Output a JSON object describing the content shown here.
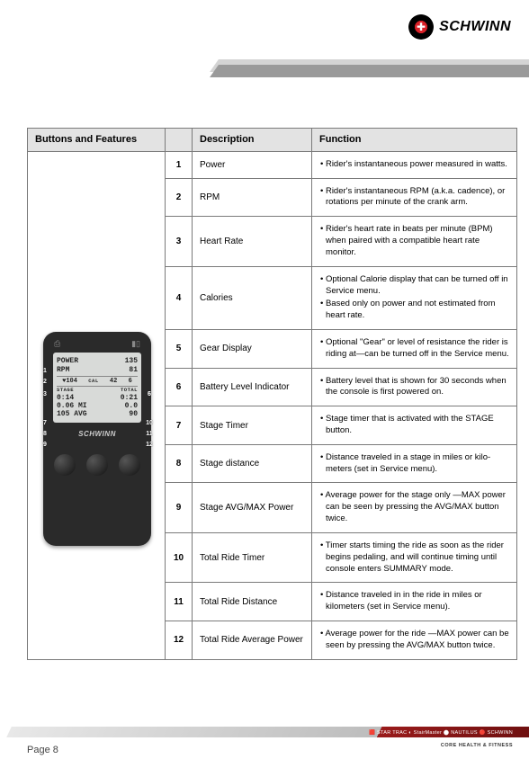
{
  "brand": "SCHWINN",
  "page_label": "Page 8",
  "footer_brands": "🟥 STAR TRAC  ◐ StairMaster  ⬤ NAUTILUS  🔴 SCHWINN",
  "footer_tag": "CORE HEALTH & FITNESS",
  "headers": {
    "c1": "Buttons and Features",
    "c2": "",
    "c3": "Description",
    "c4": "Function"
  },
  "device": {
    "brand": "SCHWINN",
    "rows": {
      "power_label": "POWER",
      "power_val": "135",
      "rpm_label": "RPM",
      "rpm_val": "81",
      "hr_label": "♥",
      "hr_val": "104",
      "cal_label": "CAL",
      "cal_val": "42",
      "gear_label": "",
      "gear_val": "6",
      "stage_lbl": "STAGE",
      "total_lbl": "TOTAL",
      "stage_time": "0:14",
      "total_time": "0:21",
      "stage_dist": "0.06 MI",
      "total_dist": "0.0",
      "stage_pwr": "105 AVG",
      "total_pwr": "90"
    },
    "markers_left": [
      "1",
      "2",
      "3",
      "7",
      "8",
      "9"
    ],
    "markers_right": [
      "5",
      "6",
      "10",
      "11",
      "12"
    ],
    "marker_4": "4"
  },
  "rows": [
    {
      "n": "1",
      "desc": "Power",
      "func": [
        "•  Rider's instantaneous power measured in watts."
      ]
    },
    {
      "n": "2",
      "desc": "RPM",
      "func": [
        "•  Rider's instantaneous RPM (a.k.a. cadence), or rotations per minute of the crank arm."
      ]
    },
    {
      "n": "3",
      "desc": "Heart Rate",
      "func": [
        "•  Rider's heart rate in beats per minute (BPM) when paired with a compatible heart rate monitor."
      ]
    },
    {
      "n": "4",
      "desc": "Calories",
      "func": [
        "•  Optional Calorie display that can be turned off in Service menu.",
        "•  Based only on power and not estimated from heart rate."
      ]
    },
    {
      "n": "5",
      "desc": "Gear Display",
      "func": [
        "•  Optional \"Gear\" or level of resistance the rider is riding at—can be turned off in the Service menu."
      ]
    },
    {
      "n": "6",
      "desc": "Battery Level Indicator",
      "func": [
        "•  Battery level that is shown for 30 seconds when the console is first powered on."
      ]
    },
    {
      "n": "7",
      "desc": "Stage Timer",
      "func": [
        "•  Stage timer that is activated with the STAGE button."
      ]
    },
    {
      "n": "8",
      "desc": "Stage distance",
      "func": [
        "•  Distance traveled in a stage in miles or kilo­meters (set in Service menu)."
      ]
    },
    {
      "n": "9",
      "desc": "Stage AVG/MAX Power",
      "func": [
        "•  Average power for the stage only —MAX power can be seen by pressing the AVG/MAX button twice."
      ]
    },
    {
      "n": "10",
      "desc": "Total Ride Timer",
      "func": [
        "•  Timer starts timing the ride as soon as the rider begins pedaling, and will continue timing until console enters SUMMARY mode."
      ]
    },
    {
      "n": "11",
      "desc": "Total Ride Distance",
      "func": [
        "•  Distance traveled in in the ride in miles or kilometers (set in Service menu)."
      ]
    },
    {
      "n": "12",
      "desc": "Total Ride Average Power",
      "func": [
        "•  Average power for the ride —MAX power can be seen by pressing the AVG/MAX button twice."
      ]
    }
  ],
  "colors": {
    "accent_light": "#d4d4d4",
    "accent_dark": "#9a9a9a",
    "header_bg": "#e3e3e3",
    "border": "#7a7a7a",
    "red": "#d92027"
  }
}
